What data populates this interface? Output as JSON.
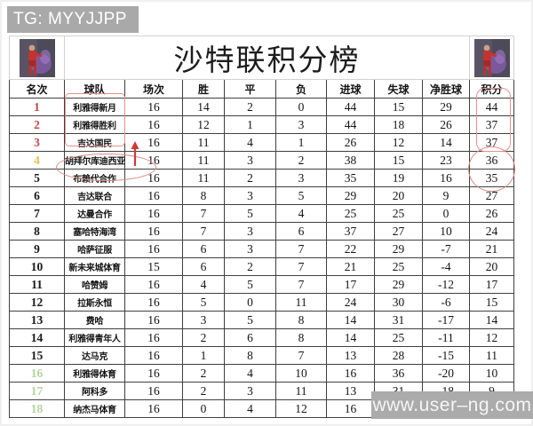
{
  "page": {
    "tag_label": "TG: MYYJJPP",
    "watermark": "www.user–ng.com",
    "title": "沙特联积分榜"
  },
  "icons": {
    "left": "player-photo",
    "right": "player-photo",
    "promotion_arrow": "up-arrow"
  },
  "colors": {
    "rank_top3": "#c44545",
    "rank_fourth": "#e3c258",
    "rank_normal": "#1a1a1a",
    "rank_bottom3": "#b5d3a0",
    "annotation_red": "#d98a88",
    "tag_gray": "#a9a9a9",
    "grid_line": "#3f3f3f"
  },
  "table": {
    "columns": [
      "名次",
      "球队",
      "场次",
      "胜",
      "平",
      "负",
      "进球",
      "失球",
      "净胜球",
      "积分"
    ],
    "rows": [
      {
        "rank": "1",
        "team": "利雅得新月",
        "played": "16",
        "win": "14",
        "draw": "2",
        "loss": "0",
        "gf": "44",
        "ga": "15",
        "gd": "29",
        "pts": "44",
        "rank_color": "#c44545"
      },
      {
        "rank": "2",
        "team": "利雅得胜利",
        "played": "16",
        "win": "12",
        "draw": "1",
        "loss": "3",
        "gf": "44",
        "ga": "18",
        "gd": "26",
        "pts": "37",
        "rank_color": "#c44545"
      },
      {
        "rank": "3",
        "team": "吉达国民",
        "played": "16",
        "win": "11",
        "draw": "4",
        "loss": "1",
        "gf": "26",
        "ga": "12",
        "gd": "14",
        "pts": "37",
        "rank_color": "#c44545"
      },
      {
        "rank": "4",
        "team": "胡拜尔库迪西亚",
        "played": "16",
        "win": "11",
        "draw": "3",
        "loss": "2",
        "gf": "38",
        "ga": "15",
        "gd": "23",
        "pts": "36",
        "rank_color": "#e3c258"
      },
      {
        "rank": "5",
        "team": "布赖代合作",
        "played": "16",
        "win": "11",
        "draw": "2",
        "loss": "3",
        "gf": "35",
        "ga": "19",
        "gd": "16",
        "pts": "35",
        "rank_color": "#1a1a1a"
      },
      {
        "rank": "6",
        "team": "吉达联合",
        "played": "16",
        "win": "8",
        "draw": "3",
        "loss": "5",
        "gf": "29",
        "ga": "20",
        "gd": "9",
        "pts": "27",
        "rank_color": "#1a1a1a"
      },
      {
        "rank": "7",
        "team": "达曼合作",
        "played": "16",
        "win": "7",
        "draw": "5",
        "loss": "4",
        "gf": "25",
        "ga": "25",
        "gd": "0",
        "pts": "26",
        "rank_color": "#1a1a1a"
      },
      {
        "rank": "8",
        "team": "塞哈特海湾",
        "played": "16",
        "win": "7",
        "draw": "3",
        "loss": "6",
        "gf": "37",
        "ga": "27",
        "gd": "10",
        "pts": "24",
        "rank_color": "#1a1a1a"
      },
      {
        "rank": "9",
        "team": "哈萨征服",
        "played": "16",
        "win": "6",
        "draw": "3",
        "loss": "7",
        "gf": "22",
        "ga": "29",
        "gd": "-7",
        "pts": "21",
        "rank_color": "#1a1a1a"
      },
      {
        "rank": "10",
        "team": "新未来城体育",
        "played": "15",
        "win": "6",
        "draw": "2",
        "loss": "7",
        "gf": "21",
        "ga": "25",
        "gd": "-4",
        "pts": "20",
        "rank_color": "#1a1a1a"
      },
      {
        "rank": "11",
        "team": "哈赞姆",
        "played": "16",
        "win": "4",
        "draw": "5",
        "loss": "7",
        "gf": "17",
        "ga": "29",
        "gd": "-12",
        "pts": "17",
        "rank_color": "#1a1a1a"
      },
      {
        "rank": "12",
        "team": "拉斯永恒",
        "played": "16",
        "win": "5",
        "draw": "0",
        "loss": "11",
        "gf": "24",
        "ga": "30",
        "gd": "-6",
        "pts": "15",
        "rank_color": "#1a1a1a"
      },
      {
        "rank": "13",
        "team": "费哈",
        "played": "16",
        "win": "3",
        "draw": "5",
        "loss": "8",
        "gf": "14",
        "ga": "31",
        "gd": "-17",
        "pts": "14",
        "rank_color": "#1a1a1a"
      },
      {
        "rank": "14",
        "team": "利雅得青年人",
        "played": "16",
        "win": "2",
        "draw": "6",
        "loss": "8",
        "gf": "14",
        "ga": "25",
        "gd": "-11",
        "pts": "12",
        "rank_color": "#1a1a1a"
      },
      {
        "rank": "15",
        "team": "达马克",
        "played": "16",
        "win": "1",
        "draw": "8",
        "loss": "7",
        "gf": "13",
        "ga": "28",
        "gd": "-15",
        "pts": "11",
        "rank_color": "#1a1a1a"
      },
      {
        "rank": "16",
        "team": "利雅得体育",
        "played": "16",
        "win": "2",
        "draw": "4",
        "loss": "10",
        "gf": "16",
        "ga": "36",
        "gd": "-20",
        "pts": "10",
        "rank_color": "#b5d3a0"
      },
      {
        "rank": "17",
        "team": "阿科多",
        "played": "16",
        "win": "2",
        "draw": "3",
        "loss": "11",
        "gf": "13",
        "ga": "31",
        "gd": "-18",
        "pts": "9",
        "rank_color": "#b5d3a0"
      },
      {
        "rank": "18",
        "team": "纳杰马体育",
        "played": "16",
        "win": "0",
        "draw": "4",
        "loss": "12",
        "gf": "16",
        "ga": "33",
        "gd": "-17",
        "pts": "4",
        "rank_color": "#b5d3a0"
      }
    ]
  },
  "annotations": {
    "top3_team_box": "red-box-around-top3-teams",
    "top3_points_box": "red-box-around-top3-points",
    "points_circle_4_5": "red-circle-around-points-36-35",
    "team_circle_row5": "red-oval-around-team-row5",
    "up_arrow_row4": "red-up-arrow-row4"
  }
}
